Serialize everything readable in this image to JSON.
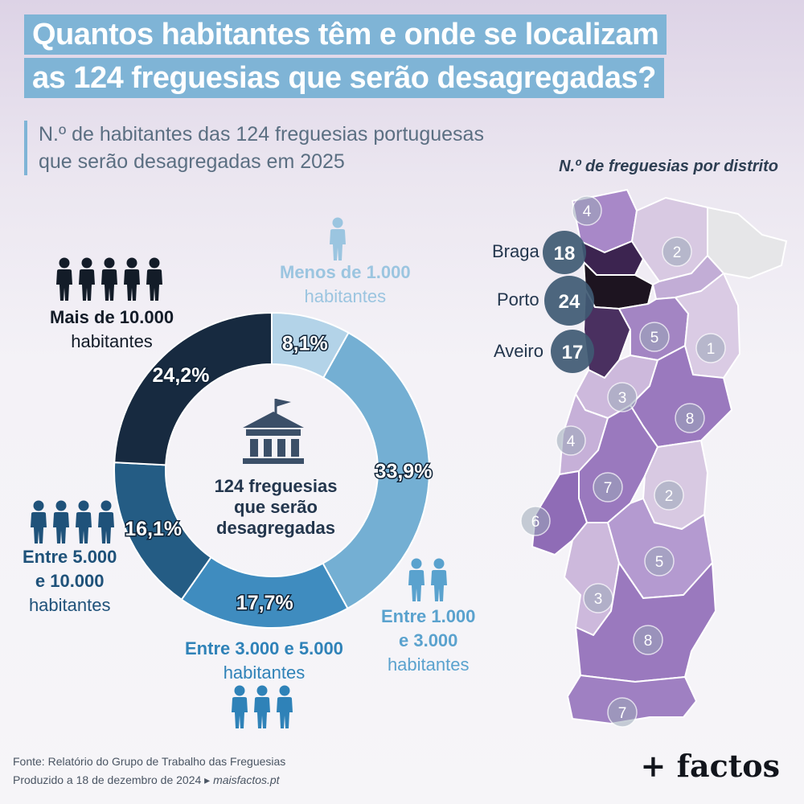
{
  "header": {
    "title_line1": "Quantos habitantes têm e onde se localizam",
    "title_line2": "as 124 freguesias que serão desagregadas?",
    "subtitle_line1": "N.º de habitantes das 124 freguesias portuguesas",
    "subtitle_line2": "que serão desagregadas em 2025"
  },
  "chart_data": [
    {
      "type": "pie",
      "center_label": [
        "124 freguesias",
        "que serão",
        "desagregadas"
      ],
      "slices": [
        {
          "label_bold": "Menos de 1.000",
          "label_normal": "habitantes",
          "value": 8.1,
          "display": "8,1%",
          "color": "#b3d3e8",
          "text_color": "#9bc5e0"
        },
        {
          "label_bold": "Entre 1.000",
          "label_bold2": "e 3.000",
          "label_normal": "habitantes",
          "value": 33.9,
          "display": "33,9%",
          "color": "#74afd3",
          "text_color": "#5aa2ce"
        },
        {
          "label_bold": "Entre 3.000 e 5.000",
          "label_normal": "habitantes",
          "value": 17.7,
          "display": "17,7%",
          "color": "#3f8cbf",
          "text_color": "#2f82b8"
        },
        {
          "label_bold": "Entre 5.000",
          "label_bold2": "e 10.000",
          "label_normal": "habitantes",
          "value": 16.1,
          "display": "16,1%",
          "color": "#245c84",
          "text_color": "#1f527a"
        },
        {
          "label_bold": "Mais de 10.000",
          "label_normal": "habitantes",
          "value": 24.2,
          "display": "24,2%",
          "color": "#172a40",
          "text_color": "#131c28"
        }
      ]
    },
    {
      "type": "choropleth-map",
      "title": "N.º de freguesias por distrito",
      "labeled_districts": [
        {
          "name": "Braga",
          "value": 18
        },
        {
          "name": "Porto",
          "value": 24
        },
        {
          "name": "Aveiro",
          "value": 17
        }
      ],
      "other_district_values": [
        4,
        2,
        5,
        1,
        3,
        8,
        4,
        7,
        2,
        6,
        5,
        3,
        8,
        7
      ]
    }
  ],
  "footer": {
    "source": "Fonte: Relatório do Grupo de Trabalho das Freguesias",
    "produced": "Produzido a 18 de dezembro de 2024 ▸",
    "site": "maisfactos.pt"
  },
  "brand": "+ factos",
  "colors": {
    "accent": "#7fb4d6",
    "map_low": "#d5c6e0",
    "map_mid": "#a484c4",
    "map_high": "#3b2550"
  }
}
